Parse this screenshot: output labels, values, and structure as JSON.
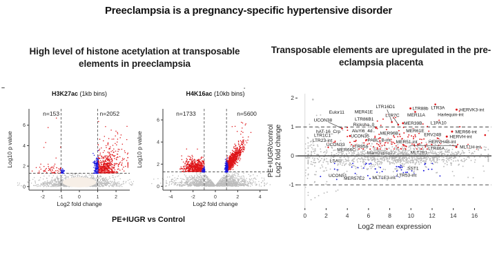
{
  "page": {
    "title": "Preeclampsia is a pregnancy-specific hypertensive disorder"
  },
  "left_section": {
    "heading": "High level of histone acetylation at transposable elements in preeclampsia",
    "caption": "PE+IUGR vs Control"
  },
  "right_section": {
    "heading": "Transposable elements are upregulated in the pre-eclampsia placenta"
  },
  "artifacts": {
    "left": "–",
    "right": "-"
  },
  "colors": {
    "up": "#de1418",
    "down": "#1717dd",
    "neutral": "#bcbcbc",
    "label": "#141414",
    "dash": "#555555",
    "zero": "#4d4d4d",
    "light": "#d8d8d8",
    "axis": "#333333"
  },
  "chart_data": [
    {
      "id": "h3k27ac",
      "type": "scatter",
      "subtype": "volcano",
      "title_bold": "H3K27ac",
      "title_rest": " (1kb bins)",
      "n_left": "n=153",
      "n_right": "n=2052",
      "xlabel": "Log2 fold change",
      "ylabel": "Log10 p value",
      "xlim": [
        -2.75,
        2.75
      ],
      "ylim": [
        -0.35,
        7.6
      ],
      "xticks": [
        -2,
        -1,
        0,
        1,
        2
      ],
      "yticks": [
        0,
        2,
        4,
        6
      ],
      "vlines_dashed": [
        -1,
        1
      ],
      "hlines_dashed": [
        1.3
      ],
      "ellipses": [
        {
          "cx": 0,
          "cy": 0.42,
          "rx": 0.92,
          "ry": 0.5,
          "fill": "#f7efe7"
        }
      ],
      "clouds": [
        {
          "n": 1050,
          "cx": 0,
          "cy": 0,
          "sx": 0.95,
          "sy": 0.5,
          "yabs": true,
          "ymax": 1.27,
          "color": "neutral"
        },
        {
          "n": 260,
          "cx": 0,
          "cy": 0,
          "sx": 1.45,
          "sy": 0.42,
          "yabs": true,
          "ymax": 1.27,
          "color": "neutral"
        },
        {
          "n": 420,
          "cx": 1.32,
          "cy": 1.75,
          "sx": 0.34,
          "sy": 0.42,
          "xmin": 1.03,
          "ymin": 1.34,
          "color": "up"
        },
        {
          "n": 170,
          "cx": 1.7,
          "cy": 2.7,
          "sx": 0.48,
          "sy": 0.85,
          "xmin": 1.03,
          "xmax": 2.65,
          "ymin": 1.34,
          "color": "up"
        },
        {
          "n": 14,
          "cx": 1.95,
          "cy": 5.2,
          "sx": 0.45,
          "sy": 0.85,
          "xmin": 1.03,
          "xmax": 2.6,
          "ymax": 6.8,
          "color": "up"
        },
        {
          "n": 55,
          "cx": -1.45,
          "cy": 1.62,
          "sx": 0.42,
          "sy": 0.3,
          "xmax": -1.03,
          "ymin": 1.34,
          "color": "up"
        },
        {
          "n": 8,
          "cx": -1.9,
          "cy": 4.2,
          "sx": 0.5,
          "sy": 1.5,
          "xmax": -1.03,
          "xmin": -2.6,
          "ymin": 2.2,
          "ymax": 6.7,
          "color": "up"
        },
        {
          "n": 160,
          "cx": 0.94,
          "cy": 1.8,
          "sx": 0.07,
          "sy": 0.55,
          "ymin": 1.31,
          "xmin": 0.75,
          "xmax": 1.02,
          "color": "down"
        },
        {
          "n": 28,
          "cx": -0.94,
          "cy": 1.48,
          "sx": 0.06,
          "sy": 0.16,
          "ymin": 1.31,
          "xmin": -1.02,
          "xmax": -0.78,
          "color": "down"
        }
      ]
    },
    {
      "id": "h4k16ac",
      "type": "scatter",
      "subtype": "volcano",
      "title_bold": "H4K16ac",
      "title_rest": " (10kb bins)",
      "n_left": "n=1733",
      "n_right": "n=5600",
      "xlabel": "Log2 fold change",
      "ylabel": "Log10 p value",
      "xlim": [
        -4.7,
        4.7
      ],
      "ylim": [
        -0.35,
        7.0
      ],
      "xticks": [
        -4,
        -2,
        0,
        2,
        4
      ],
      "yticks": [
        0,
        2,
        4,
        6
      ],
      "vlines_dashed": [
        -1,
        1
      ],
      "hlines_dashed": [
        1.3
      ],
      "gap_poly": {
        "pts": [
          [
            -0.95,
            1.3
          ],
          [
            0.95,
            1.3
          ],
          [
            0,
            0.1
          ]
        ],
        "fill": "#ffffff"
      },
      "clouds": [
        {
          "n": 1250,
          "cx": 0,
          "cy": 0,
          "sx": 1.65,
          "sy": 0.48,
          "yabs": true,
          "ymax": 1.27,
          "color": "neutral"
        },
        {
          "n": 240,
          "cx": 0,
          "cy": 0,
          "sx": 2.4,
          "sy": 0.42,
          "yabs": true,
          "ymax": 1.27,
          "xmin": -4.4,
          "xmax": 4.4,
          "color": "neutral"
        },
        {
          "n": 560,
          "cx": -1.85,
          "cy": 1.68,
          "sx": 0.5,
          "sy": 0.35,
          "xmin": -3.6,
          "xmax": -1.03,
          "ymin": 1.34,
          "ymax": 3.1,
          "color": "up"
        },
        {
          "n": 8,
          "cx": -2.2,
          "cy": 3.0,
          "sx": 0.35,
          "sy": 0.25,
          "xmax": -1.03,
          "color": "up"
        },
        {
          "n": 820,
          "corr": true,
          "x0": 1.03,
          "y0": 1.38,
          "dx": 1.15,
          "dy": 1.75,
          "spread": 0.52,
          "nx": 0.2,
          "ny": 0.35,
          "xmin": 1.03,
          "xmax": 3.6,
          "ymin": 1.34,
          "color": "up"
        },
        {
          "n": 12,
          "cx": 2.4,
          "cy": 5.0,
          "sx": 0.45,
          "sy": 0.65,
          "xmin": 1.5,
          "ymax": 6.2,
          "color": "up"
        },
        {
          "n": 55,
          "cx": -1.06,
          "cy": 1.42,
          "sx": 0.06,
          "sy": 0.13,
          "ymin": 1.3,
          "xmin": -1.25,
          "xmax": -0.95,
          "color": "down"
        },
        {
          "n": 130,
          "cx": 1.0,
          "cy": 1.55,
          "sx": 0.08,
          "sy": 0.35,
          "ymin": 1.3,
          "xmin": 0.82,
          "xmax": 1.12,
          "color": "down"
        }
      ]
    },
    {
      "id": "ma",
      "type": "scatter",
      "subtype": "ma-plot",
      "xlabel": "Log2 mean expression",
      "ylabel_lines": [
        "PE+IUGR/control",
        "Log2 fold change"
      ],
      "xlim": [
        -0.7,
        17.6
      ],
      "ylim": [
        -1.8,
        2.15
      ],
      "xticks": [
        0,
        2,
        4,
        6,
        8,
        10,
        12,
        14,
        16
      ],
      "yticks": [
        -1,
        0,
        1,
        2
      ],
      "hlines_dashed": [
        1,
        -1
      ],
      "hlines_solid": [
        0
      ],
      "vlines_light": [
        0
      ],
      "clouds": [
        {
          "n": 950,
          "cx": 8.8,
          "cy": 0,
          "sx": 3.6,
          "sy": 0.16,
          "xmin": 0.3,
          "xmax": 17.3,
          "color": "neutral"
        },
        {
          "n": 230,
          "cx": 8.2,
          "cy": 0,
          "sx": 4.2,
          "sy": 0.38,
          "xmin": 0.3,
          "xmax": 17.3,
          "ymin": -1.0,
          "ymax": 1.0,
          "color": "neutral"
        },
        {
          "n": 70,
          "cx": 0.9,
          "cy": -0.15,
          "sx": 0.7,
          "sy": 0.55,
          "xmin": 0.05,
          "color": "neutral"
        },
        {
          "n": 7,
          "cx": 1.6,
          "cy": -1.35,
          "sx": 0.8,
          "sy": 0.13,
          "xmin": 0.3,
          "color": "neutral"
        },
        {
          "n": 3,
          "cx": 1.0,
          "cy": 1.55,
          "sx": 0.3,
          "sy": 0.35,
          "color": "neutral"
        },
        {
          "n": 135,
          "cx": 9,
          "cy": 0.42,
          "sx": 2.9,
          "sy": 0.17,
          "xmin": 2.2,
          "xmax": 16.2,
          "ymin": 0.24,
          "ymax": 1.0,
          "color": "up"
        },
        {
          "n": 26,
          "cx": 9.5,
          "cy": 0.95,
          "sx": 3.2,
          "sy": 0.3,
          "xmin": 4,
          "ymin": 0.55,
          "ymax": 1.85,
          "color": "up"
        },
        {
          "n": 42,
          "cx": 8,
          "cy": -0.45,
          "sx": 2.7,
          "sy": 0.18,
          "xmin": 2.8,
          "ymin": -0.9,
          "ymax": -0.26,
          "color": "down"
        },
        {
          "n": 4,
          "cx": 4.6,
          "cy": -0.8,
          "sx": 1.6,
          "sy": 0.1,
          "color": "down"
        }
      ],
      "extra_points": {
        "up": [
          [
            8.2,
            1.17
          ],
          [
            8.8,
            1.08
          ],
          [
            3.5,
            0.95
          ],
          [
            6.7,
            0.99
          ],
          [
            12.3,
            1.78
          ],
          [
            14.6,
            1.55
          ],
          [
            10.4,
            1.52
          ],
          [
            17.0,
            0.72
          ],
          [
            16.6,
            0.28
          ]
        ],
        "neutral": [
          [
            0.75,
            1.95
          ],
          [
            1.15,
            1.28
          ]
        ]
      },
      "leaders": [
        [
          7.75,
          1.6,
          8.2,
          1.19
        ],
        [
          8.35,
          1.33,
          8.78,
          1.1
        ],
        [
          2.2,
          1.17,
          3.45,
          0.96
        ],
        [
          6.1,
          1.04,
          6.68,
          1.0
        ],
        [
          9.9,
          0.36,
          14.4,
          0.36
        ]
      ],
      "labels": [
        {
          "t": "LTR16D1",
          "x": 7.6,
          "y": 1.7,
          "g": "u"
        },
        {
          "t": "LTR88b",
          "x": 10.9,
          "y": 1.64,
          "g": "u",
          "d": 1
        },
        {
          "t": "LTR3A",
          "x": 12.55,
          "y": 1.67,
          "g": "u"
        },
        {
          "t": "HERVK3-int",
          "x": 15.75,
          "y": 1.6,
          "g": "u",
          "d": 1
        },
        {
          "t": "Eulor11",
          "x": 3.0,
          "y": 1.51,
          "g": "u"
        },
        {
          "t": "MER41E",
          "x": 5.55,
          "y": 1.53,
          "g": "u"
        },
        {
          "t": "LTR7C",
          "x": 8.25,
          "y": 1.4,
          "g": "u"
        },
        {
          "t": "MER11A",
          "x": 10.5,
          "y": 1.42,
          "g": "u"
        },
        {
          "t": "Harlequin-int",
          "x": 13.75,
          "y": 1.43,
          "g": "u"
        },
        {
          "t": "UCON38",
          "x": 1.7,
          "y": 1.24,
          "g": "u"
        },
        {
          "t": "LTR86B1",
          "x": 5.6,
          "y": 1.27,
          "g": "u"
        },
        {
          "t": "MER39B",
          "x": 10.2,
          "y": 1.13,
          "g": "u",
          "d": 1
        },
        {
          "t": "L1PA10",
          "x": 12.6,
          "y": 1.14,
          "g": "u"
        },
        {
          "t": "Ricksha_0",
          "x": 5.55,
          "y": 1.08,
          "g": "u"
        },
        {
          "t": "hAT-16_Crp",
          "x": 2.2,
          "y": 0.85,
          "g": "u"
        },
        {
          "t": "AluYi6_4d",
          "x": 5.4,
          "y": 0.87,
          "g": "u"
        },
        {
          "t": "MER96B",
          "x": 7.95,
          "y": 0.79,
          "g": "u"
        },
        {
          "t": "MER61E",
          "x": 10.4,
          "y": 0.87,
          "g": "u"
        },
        {
          "t": "MER66-int",
          "x": 15.2,
          "y": 0.84,
          "g": "u",
          "d": 1
        },
        {
          "t": "LTR1C1",
          "x": 1.65,
          "y": 0.71,
          "g": "u"
        },
        {
          "t": "UCON35",
          "x": 5.2,
          "y": 0.69,
          "g": "u",
          "d": 1
        },
        {
          "t": "ERV24B",
          "x": 12.05,
          "y": 0.74,
          "g": "u"
        },
        {
          "t": "HERVH-int",
          "x": 14.7,
          "y": 0.67,
          "g": "u",
          "d": 1
        },
        {
          "t": "LTR23-int",
          "x": 1.65,
          "y": 0.54,
          "g": "u"
        },
        {
          "t": "PABL_B-int",
          "x": 7.0,
          "y": 0.55,
          "g": "u"
        },
        {
          "t": "MER51-int",
          "x": 9.6,
          "y": 0.49,
          "g": "u"
        },
        {
          "t": "HERVH48-int",
          "x": 12.95,
          "y": 0.49,
          "g": "u"
        },
        {
          "t": "UCON33",
          "x": 2.9,
          "y": 0.39,
          "g": "u"
        },
        {
          "t": "LTR85a",
          "x": 5.2,
          "y": 0.34,
          "g": "u"
        },
        {
          "t": "LTR46A",
          "x": 12.4,
          "y": 0.26,
          "g": "u"
        },
        {
          "t": "MLT1H-int",
          "x": 15.6,
          "y": 0.31,
          "g": "u",
          "d": 1
        },
        {
          "t": "MER66C",
          "x": 3.9,
          "y": 0.21,
          "g": "u"
        },
        {
          "t": "MamGypsy2-I",
          "x": 7.2,
          "y": 0.11,
          "g": "u"
        },
        {
          "t": "MLT2B1",
          "x": 10.75,
          "y": 0.12,
          "g": "u"
        },
        {
          "t": "LSAU",
          "x": 2.9,
          "y": -0.16,
          "g": "n"
        },
        {
          "t": "SST1",
          "x": 10.2,
          "y": -0.43,
          "g": "d"
        },
        {
          "t": "UCON51",
          "x": 3.1,
          "y": -0.68,
          "g": "d"
        },
        {
          "t": "LTR53-int",
          "x": 9.6,
          "y": -0.66,
          "g": "d"
        },
        {
          "t": "MER57E2",
          "x": 4.65,
          "y": -0.77,
          "g": "d"
        },
        {
          "t": "MLT1E3-int",
          "x": 7.45,
          "y": -0.75,
          "g": "d"
        }
      ]
    }
  ]
}
